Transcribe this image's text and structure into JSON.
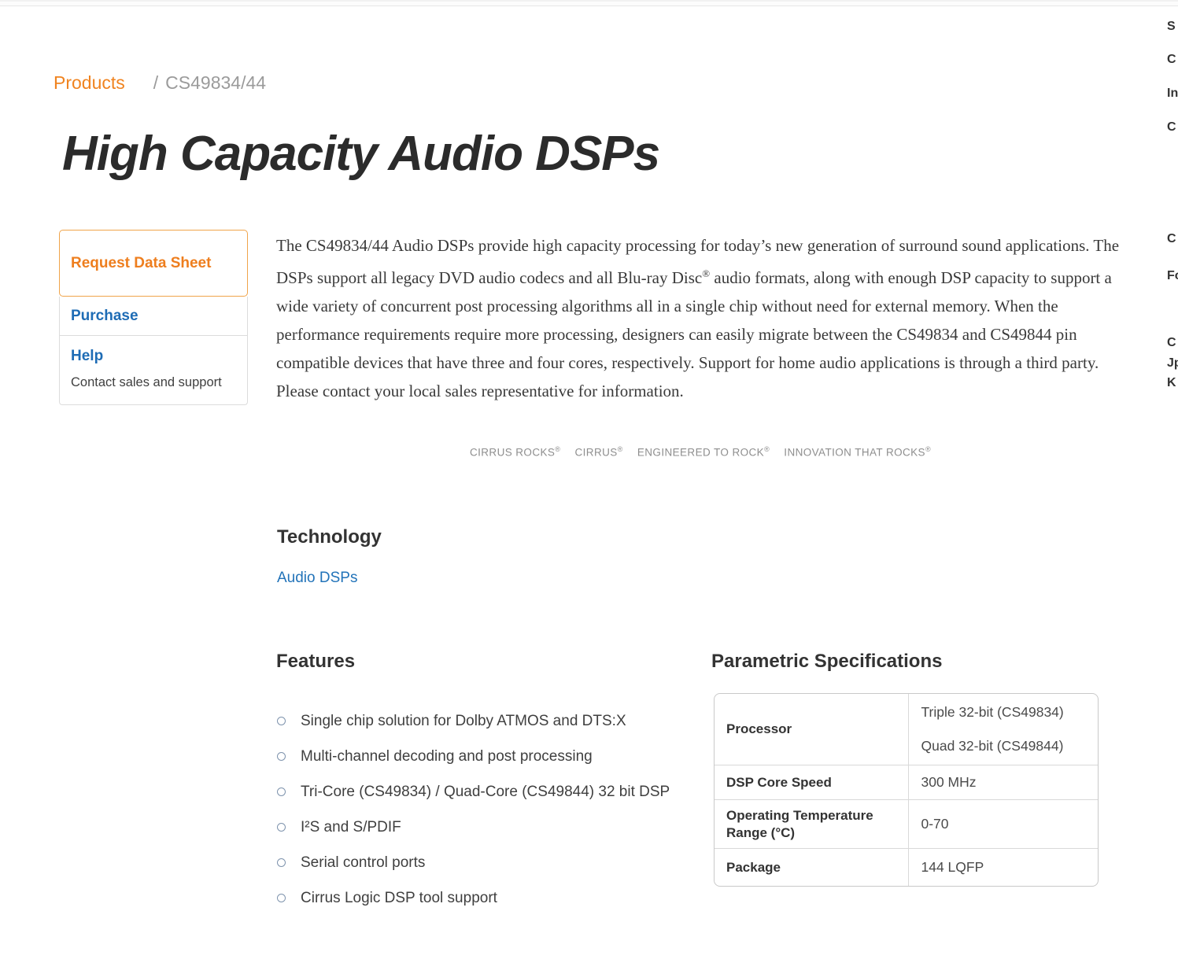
{
  "theme": {
    "brand_orange": "#ee7e1e",
    "link_blue": "#1e6cb5",
    "heading_dark": "#333333",
    "breadcrumb_gray": "#9b9b9b"
  },
  "breadcrumb": {
    "products": "Products",
    "separator": "/",
    "current": "CS49834/44"
  },
  "title": "High Capacity Audio DSPs",
  "actions": {
    "request_data_sheet_label": "Request Data Sheet",
    "purchase_label": "Purchase",
    "help_label": "Help",
    "help_description": "Contact sales and support"
  },
  "overview": {
    "text_before_reg": "The CS49834/44 Audio DSPs provide high capacity processing for today’s new generation of surround sound applications. The DSPs support all legacy DVD audio codecs and all Blu-ray Disc",
    "reg_symbol": "®",
    "text_after_reg": " audio formats, along with enough DSP capacity to support a wide variety of concurrent post processing algorithms all in a single chip without need for external memory. When the performance requirements require more processing, designers can easily migrate between the CS49834 and CS49844 pin compatible devices that have three and four cores, respectively. Support for home audio applications is through a third party. Please contact your local sales representative for information."
  },
  "trademarks": {
    "items": [
      {
        "text": "CIRRUS ROCKS",
        "reg": "®"
      },
      {
        "text": "CIRRUS",
        "reg": "®"
      },
      {
        "text": "ENGINEERED TO ROCK",
        "reg": "®"
      },
      {
        "text": "INNOVATION THAT ROCKS",
        "reg": "®"
      }
    ]
  },
  "technology": {
    "heading": "Technology",
    "link_label": "Audio DSPs"
  },
  "features": {
    "heading": "Features",
    "items": [
      "Single chip solution for Dolby ATMOS and DTS:X",
      "Multi-channel decoding and post processing",
      "Tri-Core (CS49834) / Quad-Core (CS49844) 32 bit DSP",
      "I²S and S/PDIF",
      "Serial control ports",
      "Cirrus Logic DSP tool support"
    ]
  },
  "specs": {
    "heading": "Parametric Specifications",
    "rows": [
      {
        "label": "Processor",
        "value_line1": "Triple 32-bit (CS49834)",
        "value_line2": "Quad 32-bit (CS49844)"
      },
      {
        "label": "DSP Core Speed",
        "value_line1": "300 MHz"
      },
      {
        "label": "Operating Temperature Range (°C)",
        "value_line1": "0-70"
      },
      {
        "label": "Package",
        "value_line1": "144 LQFP"
      }
    ]
  },
  "edge_nav": {
    "items": [
      "S",
      "C",
      "In",
      "C",
      "C",
      "Fo",
      "C",
      "Jp",
      "K"
    ]
  }
}
